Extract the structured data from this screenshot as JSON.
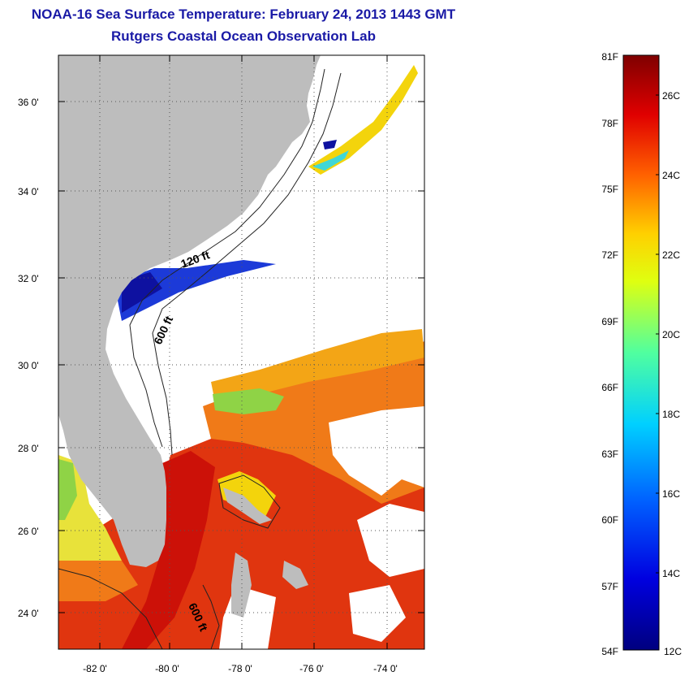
{
  "title": {
    "line1": "NOAA-16 Sea Surface Temperature:  February 24, 2013 1443 GMT",
    "line2": "Rutgers Coastal Ocean Observation Lab"
  },
  "map": {
    "lon_labels": [
      "-82 0'",
      "-80 0'",
      "-78 0'",
      "-76 0'",
      "-74 0'"
    ],
    "lat_labels": [
      "36 0'",
      "34 0'",
      "32 0'",
      "30 0'",
      "28 0'",
      "26 0'",
      "24 0'"
    ],
    "contour_labels": [
      "120 ft",
      "600 ft",
      "600 ft"
    ],
    "colors": {
      "land": "#bdbdbd",
      "cloud": "#ffffff",
      "warm": "#e01f10",
      "hot": "#cc1108",
      "orange": "#f07a18",
      "yellow": "#f3d40c",
      "green": "#8fd346",
      "cyan": "#3fd7d7",
      "blue": "#1c3ad8",
      "navy": "#0e11a0"
    }
  },
  "colorbar": {
    "f_labels": [
      "81F",
      "78F",
      "75F",
      "72F",
      "69F",
      "66F",
      "63F",
      "60F",
      "57F",
      "54F"
    ],
    "c_labels": [
      "26C",
      "24C",
      "22C",
      "20C",
      "18C",
      "16C",
      "14C",
      "12C"
    ]
  }
}
